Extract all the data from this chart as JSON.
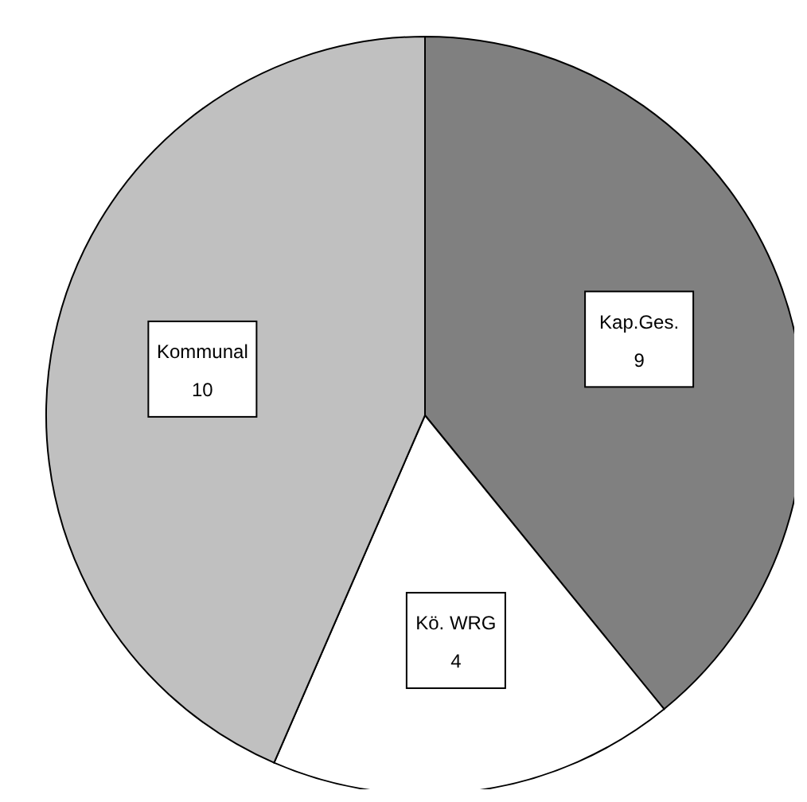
{
  "chart_data": {
    "type": "pie",
    "categories": [
      "Kap.Ges.",
      "Kö. WRG",
      "Kommunal"
    ],
    "values": [
      9,
      4,
      10
    ],
    "colors": [
      "#808080",
      "#ffffff",
      "#c0c0c0"
    ],
    "data_labels": true
  }
}
